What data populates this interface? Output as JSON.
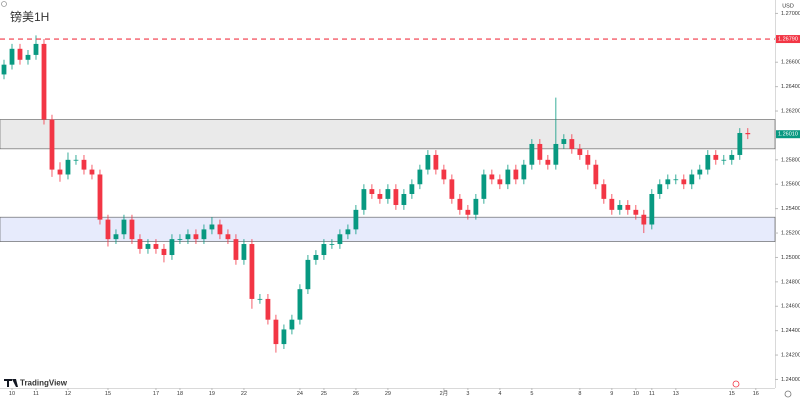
{
  "chart_data": {
    "type": "candlestick",
    "title": "镑美1H",
    "currency": "USD",
    "brand": "TradingView",
    "up_color": "#089981",
    "down_color": "#f23645",
    "open": [
      1.265,
      1.2658,
      1.2671,
      1.2662,
      1.2666,
      1.2675,
      1.2613,
      1.2572,
      1.2568,
      1.258,
      1.258,
      1.2572,
      1.2568,
      1.2531,
      1.2515,
      1.2519,
      1.2531,
      1.2515,
      1.2507,
      1.2511,
      1.2507,
      1.2502,
      1.2515,
      1.2515,
      1.2519,
      1.2515,
      1.2523,
      1.2527,
      1.2519,
      1.2515,
      1.2498,
      1.2511,
      1.2466,
      1.2466,
      1.2449,
      1.2429,
      1.2441,
      1.2449,
      1.2474,
      1.2498,
      1.2502,
      1.2511,
      1.2511,
      1.2519,
      1.2523,
      1.2539,
      1.2556,
      1.2552,
      1.2548,
      1.2556,
      1.2543,
      1.2552,
      1.256,
      1.2572,
      1.2584,
      1.2572,
      1.2564,
      1.2548,
      1.2539,
      1.2535,
      1.2548,
      1.2568,
      1.2564,
      1.256,
      1.2572,
      1.2564,
      1.2576,
      1.2593,
      1.258,
      1.2576,
      1.2593,
      1.2597,
      1.2589,
      1.2584,
      1.2576,
      1.256,
      1.2548,
      1.2539,
      1.2543,
      1.2539,
      1.2535,
      1.2527,
      1.2552,
      1.256,
      1.2564,
      1.2564,
      1.256,
      1.2568,
      1.2572,
      1.2584,
      1.258,
      1.258,
      1.2584,
      1.2602
    ],
    "high": [
      1.2662,
      1.2675,
      1.2675,
      1.267,
      1.2682,
      1.2679,
      1.2617,
      1.2578,
      1.2586,
      1.2584,
      1.2584,
      1.2576,
      1.2572,
      1.2535,
      1.2523,
      1.2535,
      1.2535,
      1.2519,
      1.2515,
      1.2515,
      1.2511,
      1.2519,
      1.2519,
      1.2523,
      1.2523,
      1.2527,
      1.2533,
      1.2531,
      1.2523,
      1.2519,
      1.2515,
      1.2515,
      1.247,
      1.247,
      1.2453,
      1.2445,
      1.2453,
      1.2478,
      1.2502,
      1.2506,
      1.2515,
      1.2515,
      1.2523,
      1.2527,
      1.2543,
      1.256,
      1.256,
      1.2556,
      1.256,
      1.256,
      1.2556,
      1.2564,
      1.2576,
      1.2588,
      1.2588,
      1.2576,
      1.2568,
      1.2552,
      1.2543,
      1.2552,
      1.2572,
      1.2572,
      1.2568,
      1.2576,
      1.2576,
      1.258,
      1.2597,
      1.2597,
      1.2584,
      1.2631,
      1.2601,
      1.2601,
      1.2593,
      1.2588,
      1.258,
      1.2564,
      1.2552,
      1.2547,
      1.2547,
      1.2543,
      1.2539,
      1.2556,
      1.2564,
      1.2568,
      1.2568,
      1.2568,
      1.2572,
      1.2576,
      1.2588,
      1.2588,
      1.2584,
      1.2588,
      1.2606,
      1.2606
    ],
    "low": [
      1.2646,
      1.2654,
      1.2658,
      1.2658,
      1.2662,
      1.2609,
      1.2566,
      1.2562,
      1.2564,
      1.2576,
      1.2568,
      1.2564,
      1.2527,
      1.2509,
      1.2511,
      1.2515,
      1.2511,
      1.2503,
      1.2503,
      1.2503,
      1.2496,
      1.2498,
      1.2511,
      1.2511,
      1.2511,
      1.2511,
      1.2519,
      1.2515,
      1.2511,
      1.2494,
      1.2494,
      1.2458,
      1.2462,
      1.2445,
      1.2422,
      1.2425,
      1.2437,
      1.2445,
      1.247,
      1.2494,
      1.2498,
      1.2507,
      1.2507,
      1.2515,
      1.2519,
      1.2535,
      1.2548,
      1.2544,
      1.2544,
      1.2539,
      1.2539,
      1.2548,
      1.2556,
      1.2568,
      1.2568,
      1.256,
      1.2544,
      1.2535,
      1.2531,
      1.2531,
      1.2544,
      1.256,
      1.2556,
      1.2556,
      1.256,
      1.256,
      1.2572,
      1.2576,
      1.2572,
      1.2572,
      1.2589,
      1.2585,
      1.258,
      1.2572,
      1.2556,
      1.2544,
      1.2535,
      1.2535,
      1.2535,
      1.2531,
      1.252,
      1.2523,
      1.2548,
      1.2556,
      1.256,
      1.2556,
      1.2556,
      1.2564,
      1.2568,
      1.2576,
      1.2576,
      1.2576,
      1.258,
      1.2597
    ],
    "close": [
      1.2658,
      1.2671,
      1.2662,
      1.2666,
      1.2675,
      1.2613,
      1.2572,
      1.2568,
      1.258,
      1.258,
      1.2572,
      1.2568,
      1.2531,
      1.2515,
      1.2519,
      1.2531,
      1.2515,
      1.2507,
      1.2511,
      1.2507,
      1.2502,
      1.2515,
      1.2515,
      1.2519,
      1.2515,
      1.2523,
      1.2527,
      1.2519,
      1.2515,
      1.2498,
      1.2511,
      1.2466,
      1.2466,
      1.2449,
      1.2429,
      1.2441,
      1.2449,
      1.2474,
      1.2498,
      1.2502,
      1.2511,
      1.2511,
      1.2519,
      1.2523,
      1.2539,
      1.2556,
      1.2552,
      1.2548,
      1.2556,
      1.2543,
      1.2552,
      1.256,
      1.2572,
      1.2584,
      1.2572,
      1.2564,
      1.2548,
      1.2539,
      1.2535,
      1.2548,
      1.2568,
      1.2564,
      1.256,
      1.2572,
      1.2564,
      1.2576,
      1.2593,
      1.258,
      1.2576,
      1.2593,
      1.2597,
      1.2589,
      1.2584,
      1.2576,
      1.256,
      1.2548,
      1.2539,
      1.2543,
      1.2539,
      1.2535,
      1.2527,
      1.2552,
      1.256,
      1.2564,
      1.2564,
      1.256,
      1.2568,
      1.2572,
      1.2584,
      1.258,
      1.258,
      1.2584,
      1.2602,
      1.2601
    ],
    "xlim": [
      -0.5,
      96.4
    ],
    "xticks": [
      {
        "value": 1,
        "label": "10"
      },
      {
        "value": 4,
        "label": "11"
      },
      {
        "value": 8,
        "label": "12"
      },
      {
        "value": 13,
        "label": "15"
      },
      {
        "value": 19,
        "label": "17"
      },
      {
        "value": 22,
        "label": "18"
      },
      {
        "value": 26,
        "label": "19"
      },
      {
        "value": 30,
        "label": "22"
      },
      {
        "value": 37,
        "label": "24"
      },
      {
        "value": 40,
        "label": "25"
      },
      {
        "value": 44,
        "label": "26"
      },
      {
        "value": 48,
        "label": "29"
      },
      {
        "value": 55,
        "label": "2月"
      },
      {
        "value": 58,
        "label": "3"
      },
      {
        "value": 62,
        "label": "4"
      },
      {
        "value": 66,
        "label": "5"
      },
      {
        "value": 72,
        "label": "8"
      },
      {
        "value": 76,
        "label": "9"
      },
      {
        "value": 79,
        "label": "10"
      },
      {
        "value": 81,
        "label": "11"
      },
      {
        "value": 84,
        "label": "13"
      },
      {
        "value": 91,
        "label": "15"
      },
      {
        "value": 94,
        "label": "16"
      }
    ],
    "ylim": [
      1.2393,
      1.2711
    ],
    "yticks": [
      {
        "value": 1.27,
        "label": "1.27000"
      },
      {
        "value": 1.268,
        "label": "1.26800"
      },
      {
        "value": 1.266,
        "label": "1.26600"
      },
      {
        "value": 1.264,
        "label": "1.26400"
      },
      {
        "value": 1.262,
        "label": "1.26200"
      },
      {
        "value": 1.26,
        "label": "1.26000"
      },
      {
        "value": 1.258,
        "label": "1.25800"
      },
      {
        "value": 1.256,
        "label": "1.25600"
      },
      {
        "value": 1.254,
        "label": "1.25400"
      },
      {
        "value": 1.252,
        "label": "1.25200"
      },
      {
        "value": 1.25,
        "label": "1.25000"
      },
      {
        "value": 1.248,
        "label": "1.24800"
      },
      {
        "value": 1.246,
        "label": "1.24600"
      },
      {
        "value": 1.244,
        "label": "1.24400"
      },
      {
        "value": 1.242,
        "label": "1.24200"
      },
      {
        "value": 1.24,
        "label": "1.24000"
      }
    ],
    "zones": [
      {
        "low": 1.2589,
        "high": 1.2613,
        "color": "#e6e6e6"
      },
      {
        "low": 1.2513,
        "high": 1.2533,
        "color": "#e3e8fc"
      }
    ],
    "alert_line": {
      "value": 1.2679,
      "label": "1.26790",
      "color": "#f23645"
    },
    "last_price": {
      "value": 1.2601,
      "label": "1.26010",
      "color": "#089981"
    }
  }
}
